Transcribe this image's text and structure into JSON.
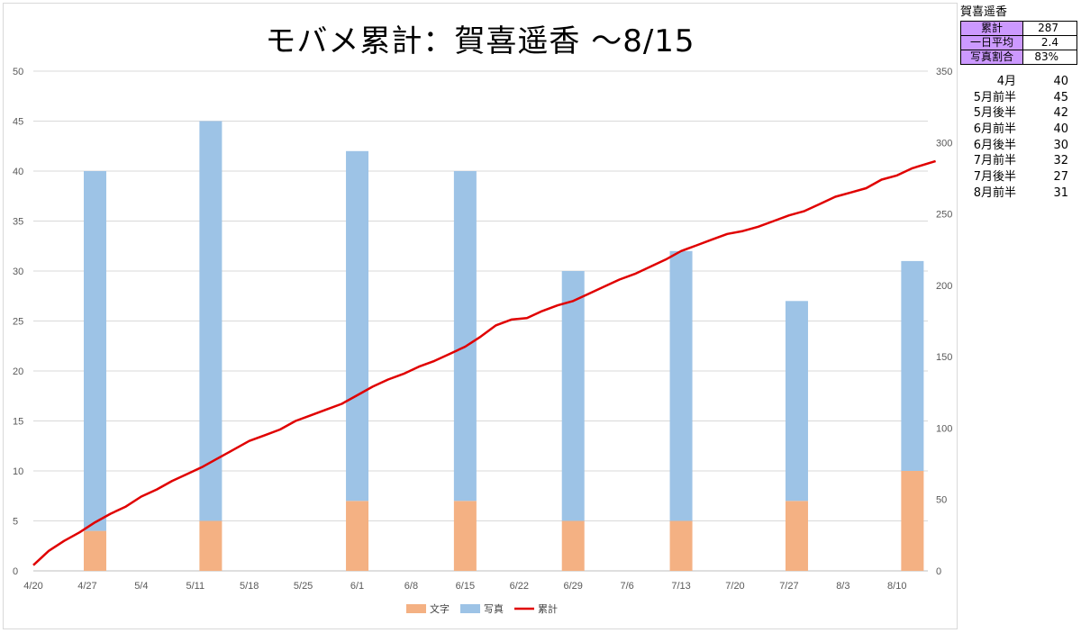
{
  "chart_data": {
    "type": "bar",
    "title": "モバメ累計：賀喜遥香 ～8/15",
    "x_tick_labels": [
      "4/20",
      "4/27",
      "5/4",
      "5/11",
      "5/18",
      "5/25",
      "6/1",
      "6/8",
      "6/15",
      "6/22",
      "6/29",
      "7/6",
      "7/13",
      "7/20",
      "7/27",
      "8/3",
      "8/10"
    ],
    "y_left": {
      "ylim": [
        0,
        50
      ],
      "ticks": [
        0,
        5,
        10,
        15,
        20,
        25,
        30,
        35,
        40,
        45,
        50
      ]
    },
    "y_right": {
      "ylim": [
        0,
        350
      ],
      "ticks": [
        0,
        50,
        100,
        150,
        200,
        250,
        300,
        350
      ]
    },
    "grid": true,
    "legend_position": "bottom",
    "categories": [
      "4/28",
      "5/13",
      "6/1",
      "6/15",
      "6/29",
      "7/13",
      "7/28",
      "8/12"
    ],
    "series": [
      {
        "name": "文字",
        "kind": "stacked-bar",
        "color": "#f4b183",
        "values": [
          4,
          5,
          7,
          7,
          5,
          5,
          7,
          10
        ]
      },
      {
        "name": "写真",
        "kind": "stacked-bar",
        "color": "#9dc3e6",
        "values": [
          36,
          40,
          35,
          33,
          25,
          27,
          20,
          21
        ]
      },
      {
        "name": "累計",
        "kind": "line",
        "axis": "right",
        "color": "#e00000",
        "x": [
          "4/20",
          "4/22",
          "4/24",
          "4/26",
          "4/28",
          "4/30",
          "5/2",
          "5/4",
          "5/6",
          "5/8",
          "5/10",
          "5/12",
          "5/14",
          "5/16",
          "5/18",
          "5/20",
          "5/22",
          "5/24",
          "5/26",
          "5/28",
          "5/30",
          "6/1",
          "6/3",
          "6/5",
          "6/7",
          "6/9",
          "6/11",
          "6/13",
          "6/15",
          "6/17",
          "6/19",
          "6/21",
          "6/23",
          "6/25",
          "6/27",
          "6/29",
          "7/1",
          "7/3",
          "7/5",
          "7/7",
          "7/9",
          "7/11",
          "7/13",
          "7/15",
          "7/17",
          "7/19",
          "7/21",
          "7/23",
          "7/25",
          "7/27",
          "7/29",
          "7/31",
          "8/2",
          "8/4",
          "8/6",
          "8/8",
          "8/10",
          "8/12",
          "8/15"
        ],
        "values": [
          4,
          14,
          21,
          27,
          34,
          40,
          45,
          52,
          57,
          63,
          68,
          73,
          79,
          85,
          91,
          95,
          99,
          105,
          109,
          113,
          117,
          123,
          129,
          134,
          138,
          143,
          147,
          152,
          157,
          164,
          172,
          176,
          177,
          182,
          186,
          189,
          194,
          199,
          204,
          208,
          213,
          218,
          224,
          228,
          232,
          236,
          238,
          241,
          245,
          249,
          252,
          257,
          262,
          265,
          268,
          274,
          277,
          282,
          287
        ]
      }
    ]
  },
  "side_panel": {
    "title": "賀喜遥香",
    "stats": [
      {
        "label": "累計",
        "value": "287"
      },
      {
        "label": "一日平均",
        "value": "2.4"
      },
      {
        "label": "写真割合",
        "value": "83%"
      }
    ],
    "monthly": [
      {
        "label": "4月",
        "value": "40"
      },
      {
        "label": "5月前半",
        "value": "45"
      },
      {
        "label": "5月後半",
        "value": "42"
      },
      {
        "label": "6月前半",
        "value": "40"
      },
      {
        "label": "6月後半",
        "value": "30"
      },
      {
        "label": "7月前半",
        "value": "32"
      },
      {
        "label": "7月後半",
        "value": "27"
      },
      {
        "label": "8月前半",
        "value": "31"
      }
    ]
  }
}
